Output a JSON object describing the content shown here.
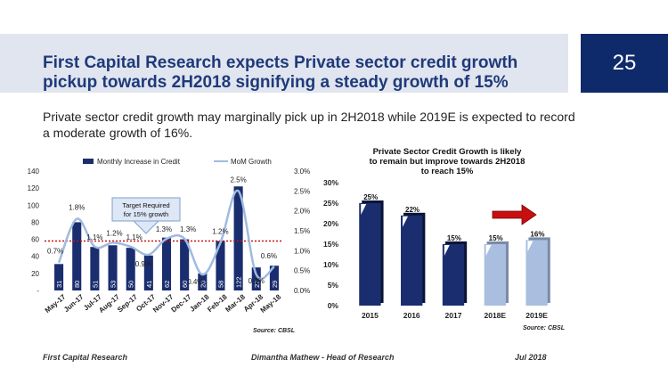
{
  "slide": {
    "title": "First Capital Research expects Private sector credit growth pickup towards 2H2018 signifying a steady growth of 15%",
    "page_number": "25",
    "subtitle": "Private sector credit growth may marginally pick up in 2H2018 while 2019E is expected to record a moderate growth of 16%."
  },
  "footer": {
    "left": "First Capital Research",
    "center": "Dimantha Mathew - Head of Research",
    "right": "Jul 2018"
  },
  "colors": {
    "navy": "#0f2a6b",
    "bar_dark": "#1a2d6e",
    "bar_light": "#aabfdf",
    "line": "#9fbbe0",
    "target": "#cc1111",
    "title": "#1f3a7a"
  },
  "chart_data": [
    {
      "type": "bar",
      "title": "",
      "legend": [
        "Monthly Increase in Credit",
        "MoM Growth"
      ],
      "legend_position": "top",
      "categories": [
        "May-17",
        "Jun-17",
        "Jul-17",
        "Aug-17",
        "Sep-17",
        "Oct-17",
        "Nov-17",
        "Dec-17",
        "Jan-18",
        "Feb-18",
        "Mar-18",
        "Apr-18",
        "May-18"
      ],
      "series": [
        {
          "name": "Monthly Increase in Credit",
          "type": "bar",
          "axis": "left",
          "values": [
            31,
            80,
            51,
            53,
            50,
            41,
            62,
            60,
            20,
            58,
            122,
            27,
            29
          ]
        },
        {
          "name": "MoM Growth",
          "type": "line",
          "axis": "right",
          "values": [
            0.7,
            1.8,
            1.1,
            1.2,
            1.1,
            0.9,
            1.3,
            1.3,
            0.4,
            1.2,
            2.5,
            0.4,
            0.6
          ],
          "labels": [
            "0.7%",
            "1.8%",
            "1.1%",
            "1.2%",
            "1.1%",
            "0.9%",
            "1.3%",
            "1.3%",
            "0.4%",
            "1.2%",
            "2.5%",
            "0.4%",
            "0.6%"
          ]
        }
      ],
      "ylim_left": [
        0,
        140
      ],
      "yticks_left": [
        "-",
        "20",
        "40",
        "60",
        "80",
        "100",
        "120",
        "140"
      ],
      "ylim_right": [
        0,
        3
      ],
      "yticks_right": [
        "0.0%",
        "0.5%",
        "1.0%",
        "1.5%",
        "2.0%",
        "2.5%",
        "3.0%"
      ],
      "target_line": 58,
      "callout": "Target Required for 15% growth",
      "source": "Source: CBSL"
    },
    {
      "type": "bar",
      "title": "Private Sector Credit Growth is likely to remain but improve towards 2H2018 to reach 15%",
      "categories": [
        "2015",
        "2016",
        "2017",
        "2018E",
        "2019E"
      ],
      "values": [
        25,
        22,
        15,
        15,
        16
      ],
      "labels": [
        "25%",
        "22%",
        "15%",
        "15%",
        "16%"
      ],
      "estimate": [
        false,
        false,
        false,
        true,
        true
      ],
      "ylim": [
        0,
        30
      ],
      "yticks": [
        "0%",
        "5%",
        "10%",
        "15%",
        "20%",
        "25%",
        "30%"
      ],
      "source": "Source: CBSL"
    }
  ]
}
